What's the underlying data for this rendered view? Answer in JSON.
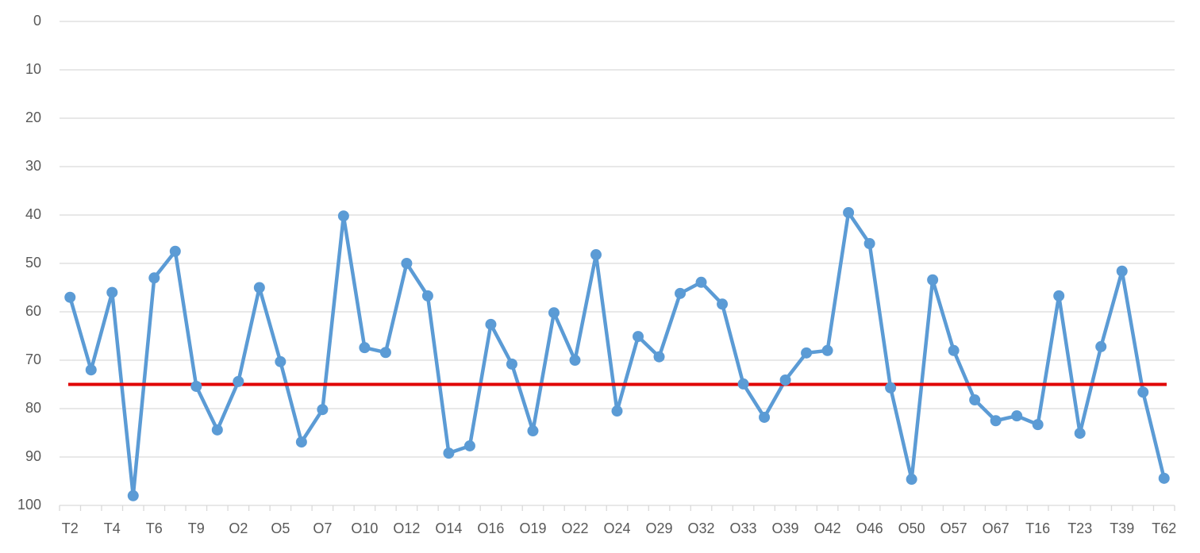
{
  "chart_data": {
    "type": "line",
    "categories": [
      "T2",
      null,
      "T4",
      null,
      "T6",
      null,
      "T9",
      null,
      "O2",
      null,
      "O5",
      null,
      "O7",
      null,
      "O10",
      null,
      "O12",
      null,
      "O14",
      null,
      "O16",
      null,
      "O19",
      null,
      "O22",
      null,
      "O24",
      null,
      "O29",
      null,
      "O32",
      null,
      "O33",
      null,
      "O39",
      null,
      "O42",
      null,
      "O46",
      null,
      "O50",
      null,
      "O57",
      null,
      "O67",
      null,
      "T16",
      null,
      "T23",
      null,
      "T39",
      null,
      "T62"
    ],
    "values": [
      57,
      72,
      56,
      98,
      53,
      47.5,
      75.4,
      84.4,
      74.4,
      55,
      70.3,
      86.9,
      80.2,
      40.2,
      67.4,
      68.4,
      50,
      56.7,
      89.2,
      87.7,
      62.6,
      70.8,
      84.6,
      60.2,
      70,
      48.2,
      80.5,
      65.1,
      69.3,
      56.2,
      53.9,
      58.4,
      74.9,
      81.8,
      74.1,
      68.5,
      68,
      39.5,
      45.9,
      75.7,
      94.6,
      53.4,
      68,
      78.2,
      82.5,
      81.5,
      83.3,
      56.7,
      85.1,
      67.2,
      51.6,
      76.6,
      94.4
    ],
    "color": "#5b9bd5",
    "reference_line": {
      "value": 75,
      "color": "#e00000"
    },
    "ylim": [
      0,
      100
    ],
    "y_reversed": true,
    "yticks": [
      0,
      10,
      20,
      30,
      40,
      50,
      60,
      70,
      80,
      90,
      100
    ],
    "grid": true
  }
}
